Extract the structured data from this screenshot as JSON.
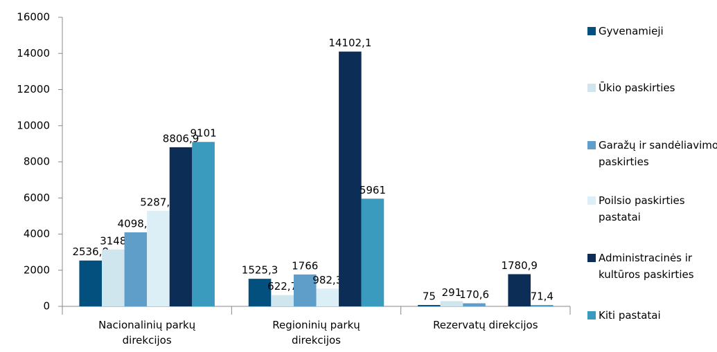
{
  "chart_data": {
    "type": "bar",
    "categories": [
      "Nacionalinių parkų direkcijos",
      "Regioninių parkų direkcijos",
      "Rezervatų direkcijos"
    ],
    "series": [
      {
        "name": "Gyvenamieji",
        "color": "#03507e",
        "values": [
          2536.8,
          1525.3,
          75
        ],
        "value_labels": [
          "2536,8",
          "1525,3",
          "75"
        ]
      },
      {
        "name": "Ūkio paskirties",
        "color": "#cfe6ef",
        "values": [
          3148,
          622.7,
          291
        ],
        "value_labels": [
          "3148",
          "622,7",
          "291"
        ]
      },
      {
        "name": "Garažų ir sandėliavimo paskirties",
        "color": "#5f9ec9",
        "values": [
          4098.6,
          1766,
          170.6
        ],
        "value_labels": [
          "4098,6",
          "1766",
          "170,6"
        ]
      },
      {
        "name": "Poilsio paskirties pastatai",
        "color": "#dceef6",
        "values": [
          5287.2,
          982.3,
          null
        ],
        "value_labels": [
          "5287,2",
          "982,3",
          null
        ]
      },
      {
        "name": "Administracinės ir kultūros paskirties",
        "color": "#0c2e56",
        "values": [
          8806.9,
          14102.1,
          1780.9
        ],
        "value_labels": [
          "8806,9",
          "14102,1",
          "1780,9"
        ]
      },
      {
        "name": "Kiti pastatai",
        "color": "#3b9bbf",
        "values": [
          9101,
          5961,
          71.4
        ],
        "value_labels": [
          "9101",
          "5961",
          "71,4"
        ]
      }
    ],
    "ylim": [
      0,
      16000
    ],
    "yticks": [
      0,
      2000,
      4000,
      6000,
      8000,
      10000,
      12000,
      14000,
      16000
    ],
    "grid": false,
    "legend": "right"
  }
}
